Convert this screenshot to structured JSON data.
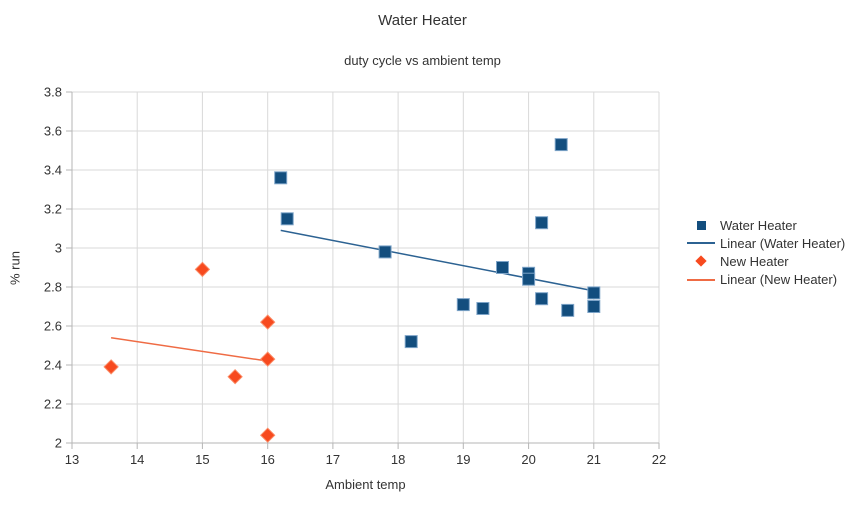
{
  "colors": {
    "background": "#ffffff",
    "grid": "#d9d9d9",
    "axis": "#b5b5b5",
    "text": "#333333"
  },
  "chart_data": {
    "type": "scatter",
    "title": "Water Heater",
    "subtitle": "duty cycle vs ambient temp",
    "xlabel": "Ambient temp",
    "ylabel": "% run",
    "xlim": [
      13,
      22
    ],
    "ylim": [
      2,
      3.8
    ],
    "x_ticks": [
      13,
      14,
      15,
      16,
      17,
      18,
      19,
      20,
      21,
      22
    ],
    "y_ticks": [
      2,
      2.2,
      2.4,
      2.6,
      2.8,
      3,
      3.2,
      3.4,
      3.6,
      3.8
    ],
    "grid": true,
    "legend_position": "right",
    "series": [
      {
        "name": "Water Heater",
        "marker": "square",
        "color": "#134e7e",
        "marker_stroke": "#7da4c8",
        "points": [
          [
            16.2,
            3.36
          ],
          [
            16.3,
            3.15
          ],
          [
            17.8,
            2.98
          ],
          [
            18.2,
            2.52
          ],
          [
            19.0,
            2.71
          ],
          [
            19.3,
            2.69
          ],
          [
            19.6,
            2.9
          ],
          [
            20.0,
            2.87
          ],
          [
            20.0,
            2.84
          ],
          [
            20.2,
            3.13
          ],
          [
            20.2,
            2.74
          ],
          [
            20.5,
            3.53
          ],
          [
            20.6,
            2.68
          ],
          [
            21.0,
            2.77
          ],
          [
            21.0,
            2.7
          ]
        ]
      },
      {
        "name": "New Heater",
        "marker": "diamond",
        "color": "#f74a1f",
        "marker_stroke": "#fb8b66",
        "points": [
          [
            13.6,
            2.39
          ],
          [
            15.0,
            2.89
          ],
          [
            15.5,
            2.34
          ],
          [
            16.0,
            2.62
          ],
          [
            16.0,
            2.43
          ],
          [
            16.0,
            2.04
          ]
        ]
      }
    ],
    "trendlines": [
      {
        "name": "Linear (Water Heater)",
        "color": "#2c6292",
        "x1": 16.2,
        "y1": 3.09,
        "x2": 21.0,
        "y2": 2.78
      },
      {
        "name": "Linear (New Heater)",
        "color": "#ef6b44",
        "x1": 13.6,
        "y1": 2.54,
        "x2": 16.0,
        "y2": 2.42
      }
    ],
    "legend": {
      "items": [
        {
          "label": "Water Heater",
          "swatch": "square",
          "color": "#134e7e"
        },
        {
          "label": "Linear (Water Heater)",
          "swatch": "line",
          "color": "#2c6292"
        },
        {
          "label": "New Heater",
          "swatch": "diamond",
          "color": "#f74a1f"
        },
        {
          "label": "Linear (New Heater)",
          "swatch": "line",
          "color": "#ef6b44"
        }
      ]
    }
  }
}
